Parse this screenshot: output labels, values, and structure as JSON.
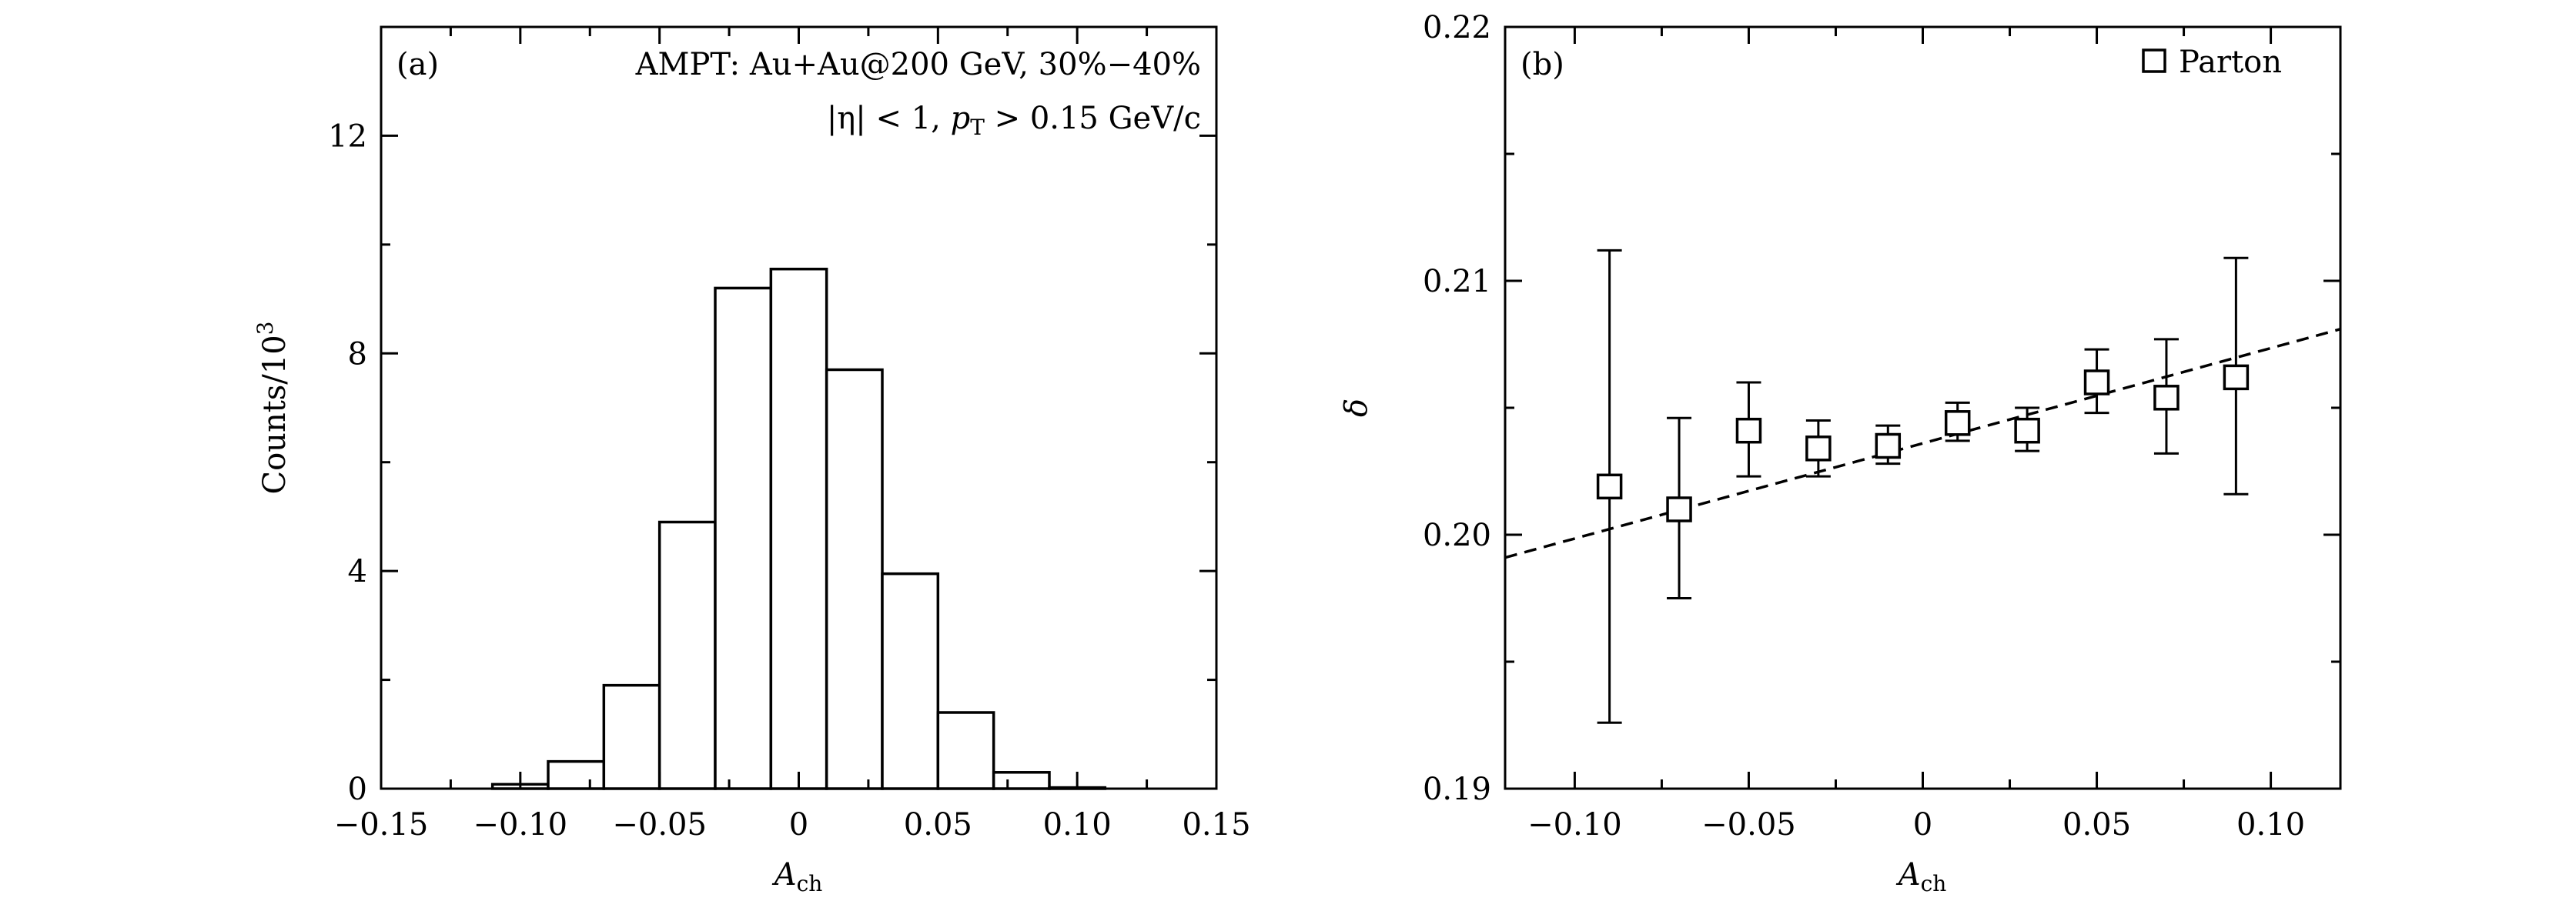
{
  "chart_data": [
    {
      "panel": "a",
      "type": "bar",
      "panel_label": "(a)",
      "annotation_line1": "AMPT: Au+Au@200 GeV, 30%−40%",
      "annotation_line2": {
        "eta_cut": "|η| < 1, ",
        "pt_symbol": "p",
        "pt_subscript": "T",
        "pt_cut": " > 0.15 GeV/c"
      },
      "xlabel": {
        "symbol": "A",
        "subscript": "ch"
      },
      "ylabel": {
        "text": "Counts/10",
        "superscript": "3"
      },
      "xlim": [
        -0.15,
        0.15
      ],
      "ylim": [
        0,
        14
      ],
      "xticks": [
        -0.15,
        -0.1,
        -0.05,
        0,
        0.05,
        0.1,
        0.15
      ],
      "xtick_labels": [
        "−0.15",
        "−0.10",
        "−0.05",
        "0",
        "0.05",
        "0.10",
        "0.15"
      ],
      "yticks": [
        0,
        4,
        8,
        12
      ],
      "ytick_labels": [
        "0",
        "4",
        "8",
        "12"
      ],
      "bin_edges": [
        -0.11,
        -0.09,
        -0.07,
        -0.05,
        -0.03,
        -0.01,
        0.01,
        0.03,
        0.05,
        0.07,
        0.09,
        0.11
      ],
      "values": [
        0.08,
        0.5,
        1.9,
        4.9,
        9.2,
        9.55,
        7.7,
        3.95,
        1.4,
        0.3,
        0.02
      ]
    },
    {
      "panel": "b",
      "type": "scatter",
      "panel_label": "(b)",
      "xlabel": {
        "symbol": "A",
        "subscript": "ch"
      },
      "ylabel": "δ",
      "xlim": [
        -0.12,
        0.12
      ],
      "ylim": [
        0.19,
        0.22
      ],
      "xticks": [
        -0.1,
        -0.05,
        0,
        0.05,
        0.1
      ],
      "xtick_labels": [
        "−0.10",
        "−0.05",
        "0",
        "0.05",
        "0.10"
      ],
      "yticks": [
        0.19,
        0.2,
        0.21,
        0.22
      ],
      "ytick_labels": [
        "0.19",
        "0.20",
        "0.21",
        "0.22"
      ],
      "series": [
        {
          "name": "Parton",
          "marker": "open-square",
          "x": [
            -0.09,
            -0.07,
            -0.05,
            -0.03,
            -0.01,
            0.01,
            0.03,
            0.05,
            0.07,
            0.09
          ],
          "y": [
            0.2019,
            0.201,
            0.2041,
            0.2034,
            0.2035,
            0.2044,
            0.2041,
            0.206,
            0.2054,
            0.2062
          ],
          "yerr_low": [
            0.1926,
            0.1975,
            0.2023,
            0.2023,
            0.2028,
            0.2037,
            0.2033,
            0.2048,
            0.2032,
            0.2016
          ],
          "yerr_high": [
            0.2112,
            0.2046,
            0.206,
            0.2045,
            0.2043,
            0.2052,
            0.205,
            0.2073,
            0.2077,
            0.2109
          ]
        }
      ],
      "fit_line": {
        "style": "dashed",
        "x": [
          -0.12,
          0.12
        ],
        "y": [
          0.1991,
          0.2081
        ]
      },
      "legend_label": "Parton",
      "legend_position": "top-right"
    }
  ]
}
